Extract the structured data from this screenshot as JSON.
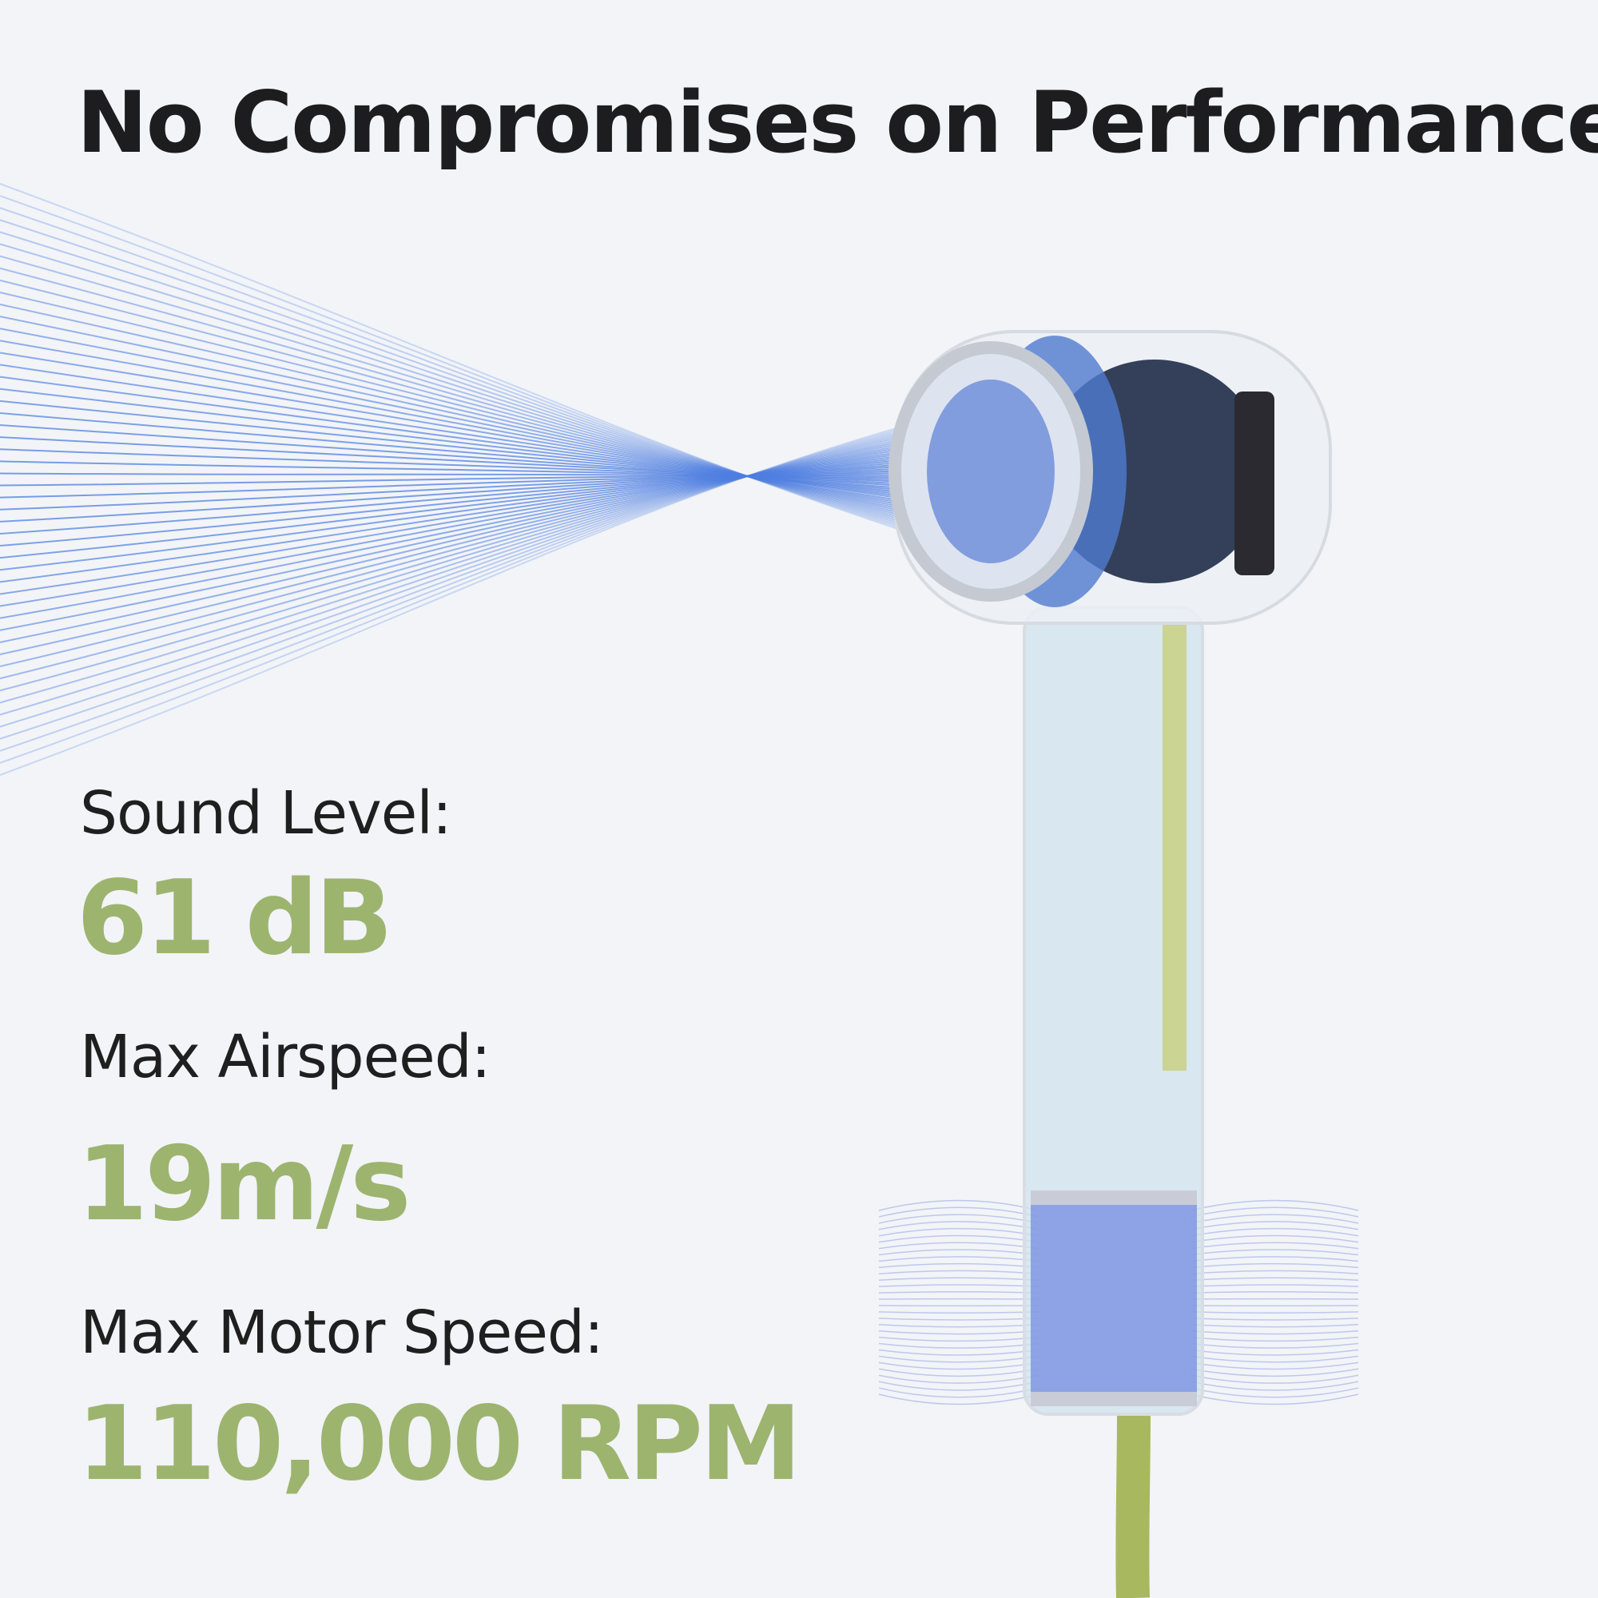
{
  "headline": "No Compromises on Performance",
  "specs": [
    {
      "label": "Sound Level:",
      "value": "61 dB"
    },
    {
      "label": "Max Airspeed:",
      "value": "19m/s"
    },
    {
      "label": "Max Motor Speed:",
      "value": "110,000 RPM"
    }
  ],
  "colors": {
    "background": "#f2f4f8",
    "accent_green": "#9db46f",
    "airflow_blue": "#4f7fe0",
    "text": "#1d1d1f"
  }
}
